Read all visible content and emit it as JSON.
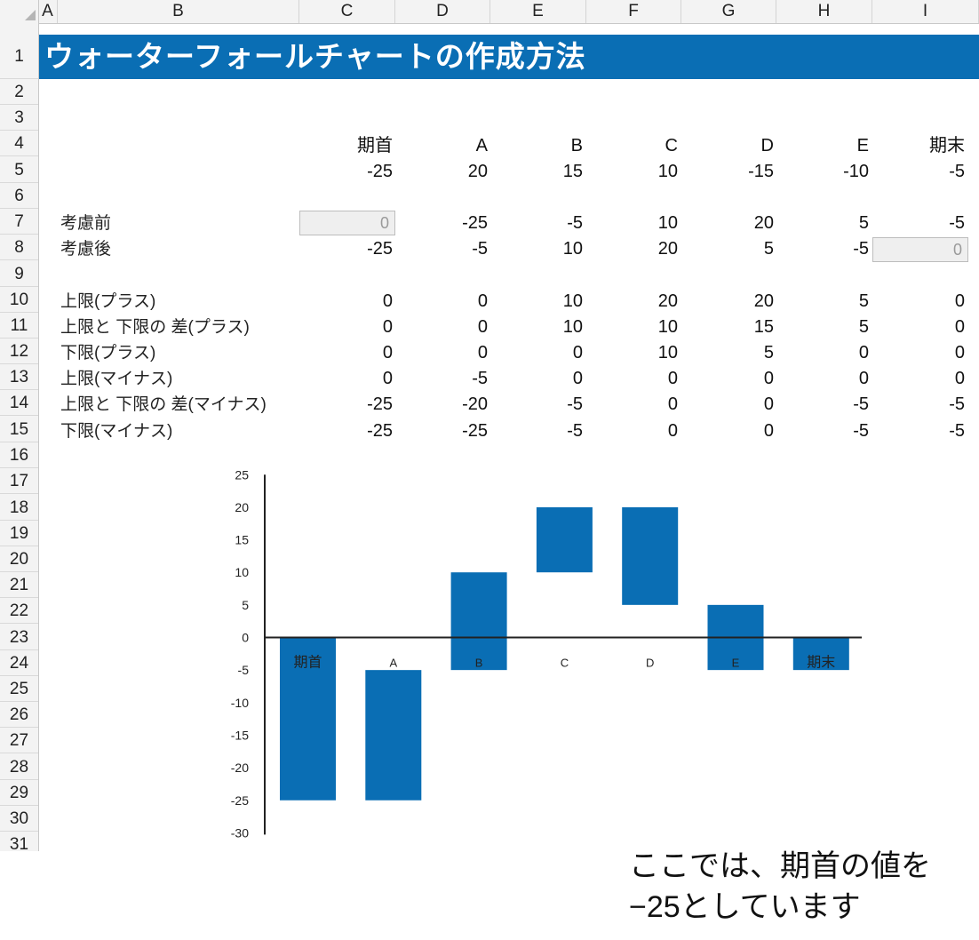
{
  "sheet": {
    "columns": [
      "A",
      "B",
      "C",
      "D",
      "E",
      "F",
      "G",
      "H",
      "I"
    ],
    "rows": [
      "1",
      "2",
      "3",
      "4",
      "5",
      "6",
      "7",
      "8",
      "9",
      "10",
      "11",
      "12",
      "13",
      "14",
      "15",
      "16",
      "17",
      "18",
      "19",
      "20",
      "21",
      "22",
      "23",
      "24",
      "25",
      "26",
      "27",
      "28",
      "29",
      "30",
      "31"
    ],
    "title": "ウォーターフォールチャートの作成方法",
    "header_row": [
      "期首",
      "A",
      "B",
      "C",
      "D",
      "E",
      "期末"
    ],
    "values_row": [
      "-25",
      "20",
      "15",
      "10",
      "-15",
      "-10",
      "-5"
    ],
    "before": {
      "label": "考慮前",
      "values": [
        "0",
        "-25",
        "-5",
        "10",
        "20",
        "5",
        "-5"
      ]
    },
    "after": {
      "label": "考慮後",
      "values": [
        "-25",
        "-5",
        "10",
        "20",
        "5",
        "-5",
        "0"
      ]
    },
    "table": [
      {
        "label": "上限(プラス)",
        "values": [
          "0",
          "0",
          "10",
          "20",
          "20",
          "5",
          "0"
        ]
      },
      {
        "label": "上限と 下限の 差(プラス)",
        "values": [
          "0",
          "0",
          "10",
          "10",
          "15",
          "5",
          "0"
        ]
      },
      {
        "label": "下限(プラス)",
        "values": [
          "0",
          "0",
          "0",
          "10",
          "5",
          "0",
          "0"
        ]
      },
      {
        "label": "上限(マイナス)",
        "values": [
          "0",
          "-5",
          "0",
          "0",
          "0",
          "0",
          "0"
        ]
      },
      {
        "label": "上限と 下限の 差(マイナス)",
        "values": [
          "-25",
          "-20",
          "-5",
          "0",
          "0",
          "-5",
          "-5"
        ]
      },
      {
        "label": "下限(マイナス)",
        "values": [
          "-25",
          "-25",
          "-5",
          "0",
          "0",
          "-5",
          "-5"
        ]
      }
    ]
  },
  "chart_data": {
    "type": "bar",
    "categories": [
      "期首",
      "A",
      "B",
      "C",
      "D",
      "E",
      "期末"
    ],
    "series": [
      {
        "values": [
          [
            -25,
            0
          ],
          [
            -25,
            -5
          ],
          [
            -5,
            10
          ],
          [
            10,
            20
          ],
          [
            5,
            20
          ],
          [
            -5,
            5
          ],
          [
            -5,
            0
          ]
        ]
      }
    ],
    "yticks": [
      "25",
      "20",
      "15",
      "10",
      "5",
      "0",
      "-5",
      "-10",
      "-15",
      "-20",
      "-25",
      "-30"
    ],
    "ylim": [
      -30,
      25
    ],
    "bar_color": "#0a6eb4",
    "grid": false,
    "legend": "none"
  },
  "note": {
    "line1": "ここでは、期首の値を",
    "line2": "−25としています"
  },
  "colors": {
    "accent": "#0a6eb4"
  }
}
